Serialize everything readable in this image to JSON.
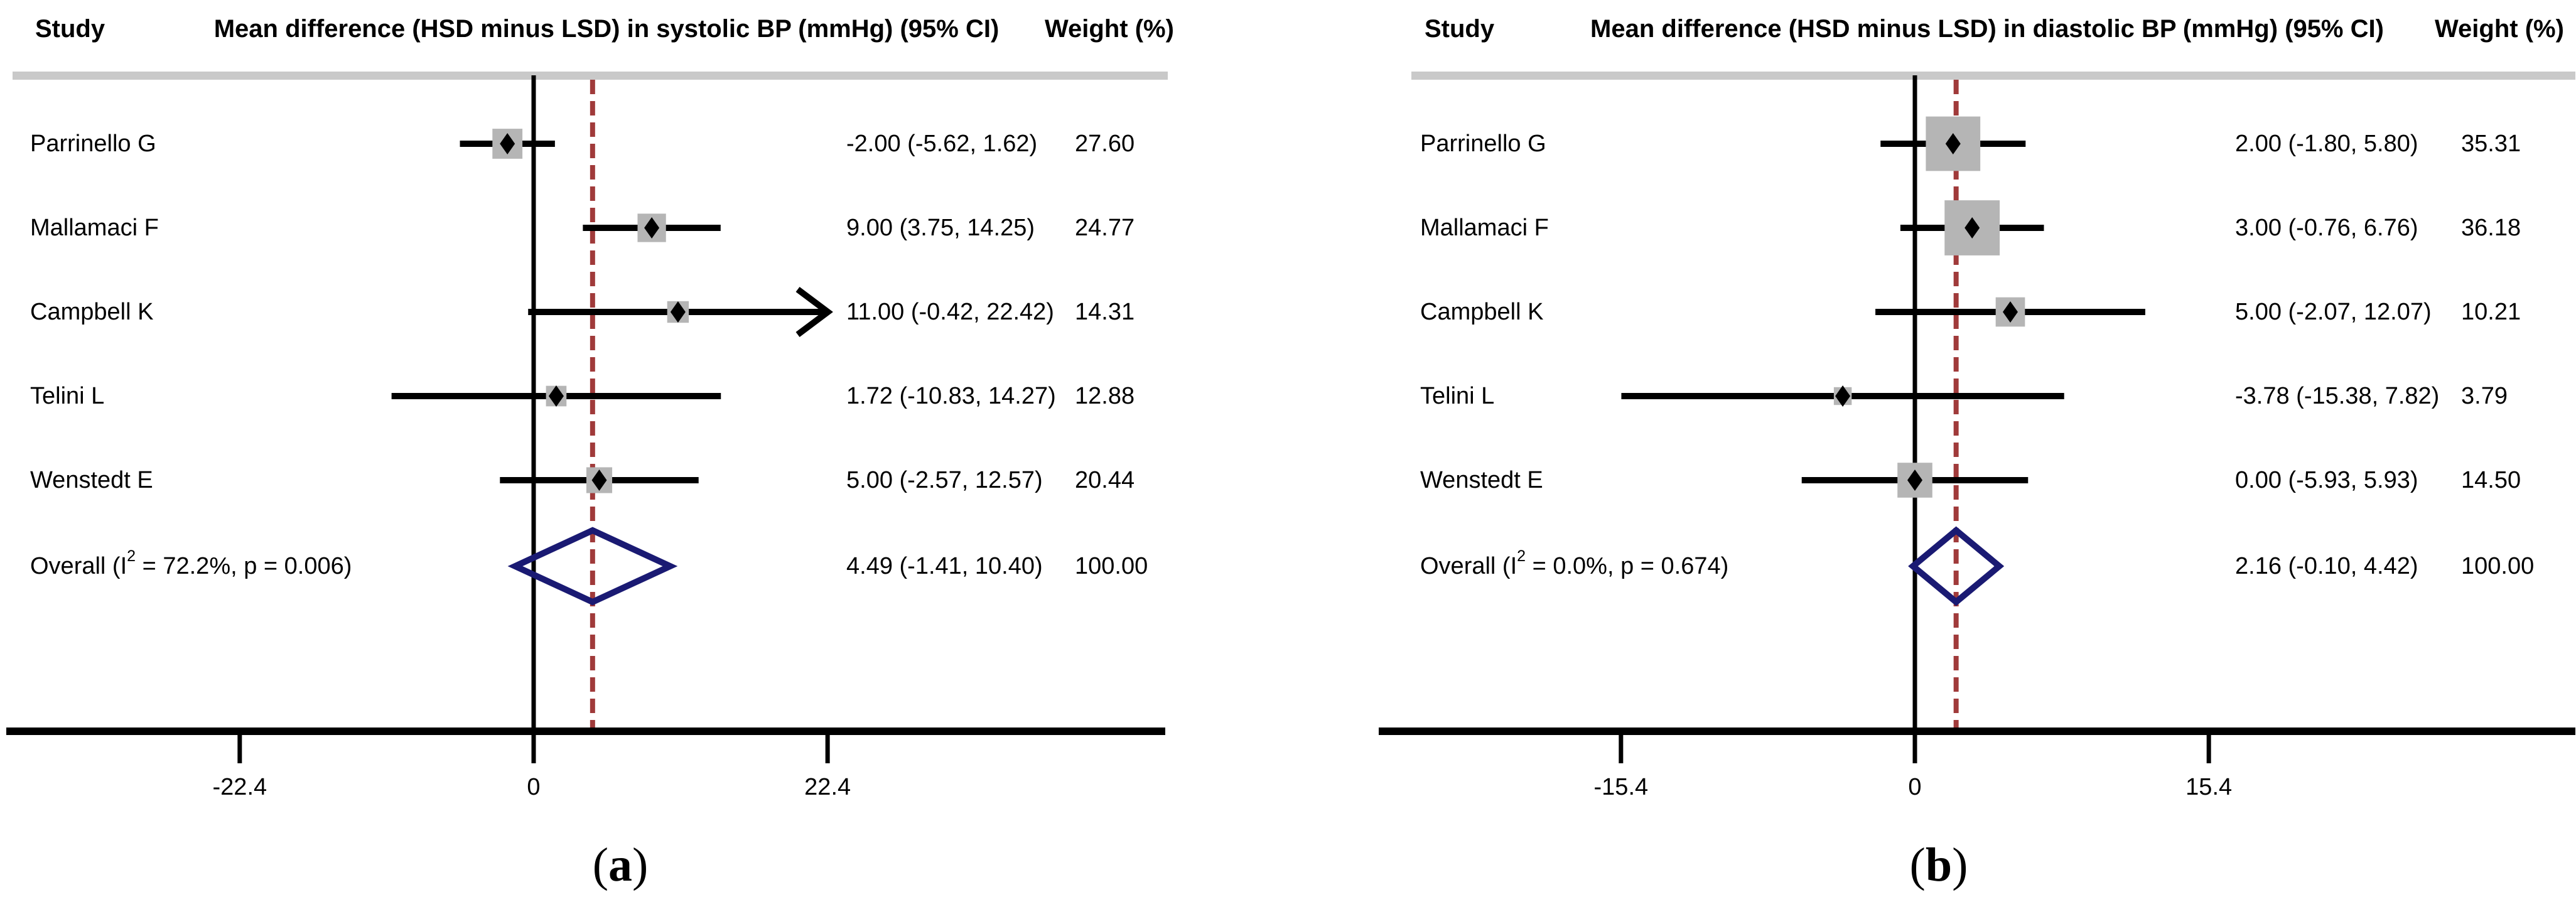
{
  "chart_data": {
    "type": "scatter",
    "subtype": "forest-plot",
    "panels": [
      {
        "caption": {
          "pre": "(",
          "letter": "a",
          "post": ")"
        },
        "header": {
          "study": "Study",
          "effect": "Mean difference (HSD minus LSD) in systolic BP (mmHg) (95% CI)",
          "weight": "Weight (%)"
        },
        "studies": [
          {
            "name": "Parrinello G",
            "est": -2.0,
            "lo": -5.62,
            "hi": 1.62,
            "weight": 27.6,
            "ci_text": "-2.00 (-5.62, 1.62)",
            "weight_text": "27.60"
          },
          {
            "name": "Mallamaci F",
            "est": 9.0,
            "lo": 3.75,
            "hi": 14.25,
            "weight": 24.77,
            "ci_text": "9.00 (3.75, 14.25)",
            "weight_text": "24.77"
          },
          {
            "name": "Campbell K",
            "est": 11.0,
            "lo": -0.42,
            "hi": 22.42,
            "weight": 14.31,
            "ci_text": "11.00 (-0.42, 22.42)",
            "weight_text": "14.31",
            "arrow_right": true
          },
          {
            "name": "Telini L",
            "est": 1.72,
            "lo": -10.83,
            "hi": 14.27,
            "weight": 12.88,
            "ci_text": "1.72 (-10.83, 14.27)",
            "weight_text": "12.88"
          },
          {
            "name": "Wenstedt E",
            "est": 5.0,
            "lo": -2.57,
            "hi": 12.57,
            "weight": 20.44,
            "ci_text": "5.00 (-2.57, 12.57)",
            "weight_text": "20.44"
          }
        ],
        "overall": {
          "label_pre": "Overall  (I",
          "label_sup": "2",
          "label_post": " = 72.2%, p = 0.006)",
          "est": 4.49,
          "lo": -1.41,
          "hi": 10.4,
          "ci_text": "4.49 (-1.41, 10.40)",
          "weight_text": "100.00"
        },
        "ticks": [
          {
            "label": "-22.4",
            "value": -22.4
          },
          {
            "label": "0",
            "value": 0
          },
          {
            "label": "22.4",
            "value": 22.4
          }
        ],
        "xlim": [
          -22.4,
          22.4
        ],
        "pooled_line_value": 4.49
      },
      {
        "caption": {
          "pre": "(",
          "letter": "b",
          "post": ")"
        },
        "header": {
          "study": "Study",
          "effect": "Mean difference (HSD minus LSD) in diastolic BP (mmHg) (95% CI)",
          "weight": "Weight (%)"
        },
        "studies": [
          {
            "name": "Parrinello G",
            "est": 2.0,
            "lo": -1.8,
            "hi": 5.8,
            "weight": 35.31,
            "ci_text": "2.00 (-1.80, 5.80)",
            "weight_text": "35.31"
          },
          {
            "name": "Mallamaci F",
            "est": 3.0,
            "lo": -0.76,
            "hi": 6.76,
            "weight": 36.18,
            "ci_text": "3.00 (-0.76, 6.76)",
            "weight_text": "36.18"
          },
          {
            "name": "Campbell K",
            "est": 5.0,
            "lo": -2.07,
            "hi": 12.07,
            "weight": 10.21,
            "ci_text": "5.00 (-2.07, 12.07)",
            "weight_text": "10.21"
          },
          {
            "name": "Telini L",
            "est": -3.78,
            "lo": -15.38,
            "hi": 7.82,
            "weight": 3.79,
            "ci_text": "-3.78 (-15.38, 7.82)",
            "weight_text": "3.79"
          },
          {
            "name": "Wenstedt E",
            "est": 0.0,
            "lo": -5.93,
            "hi": 5.93,
            "weight": 14.5,
            "ci_text": "0.00 (-5.93, 5.93)",
            "weight_text": "14.50"
          }
        ],
        "overall": {
          "label_pre": "Overall  (I",
          "label_sup": "2",
          "label_post": " = 0.0%, p = 0.674)",
          "est": 2.16,
          "lo": -0.1,
          "hi": 4.42,
          "ci_text": "2.16 (-0.10, 4.42)",
          "weight_text": "100.00"
        },
        "ticks": [
          {
            "label": "-15.4",
            "value": -15.4
          },
          {
            "label": "0",
            "value": 0
          },
          {
            "label": "15.4",
            "value": 15.4
          }
        ],
        "xlim": [
          -15.4,
          15.4
        ],
        "pooled_line_value": 2.16
      }
    ],
    "colors": {
      "pooled_line": "#a03a3a",
      "overall_diamond": "#1a1a73",
      "weight_square": "#b5b5b5",
      "header_rule": "#c9c9c9",
      "axis": "#000000",
      "text": "#000000"
    }
  }
}
